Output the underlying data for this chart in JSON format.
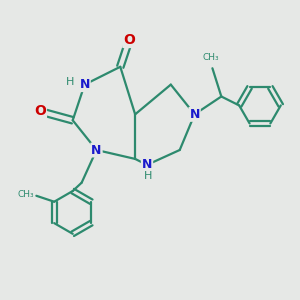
{
  "bg_color": "#e6e8e6",
  "bond_color": "#2d8a6e",
  "N_color": "#1a1acc",
  "O_color": "#cc0000",
  "H_color": "#2d8a6e",
  "bond_width": 1.6,
  "fig_size": [
    3.0,
    3.0
  ],
  "dpi": 100,
  "xlim": [
    0,
    10
  ],
  "ylim": [
    0,
    10
  ]
}
